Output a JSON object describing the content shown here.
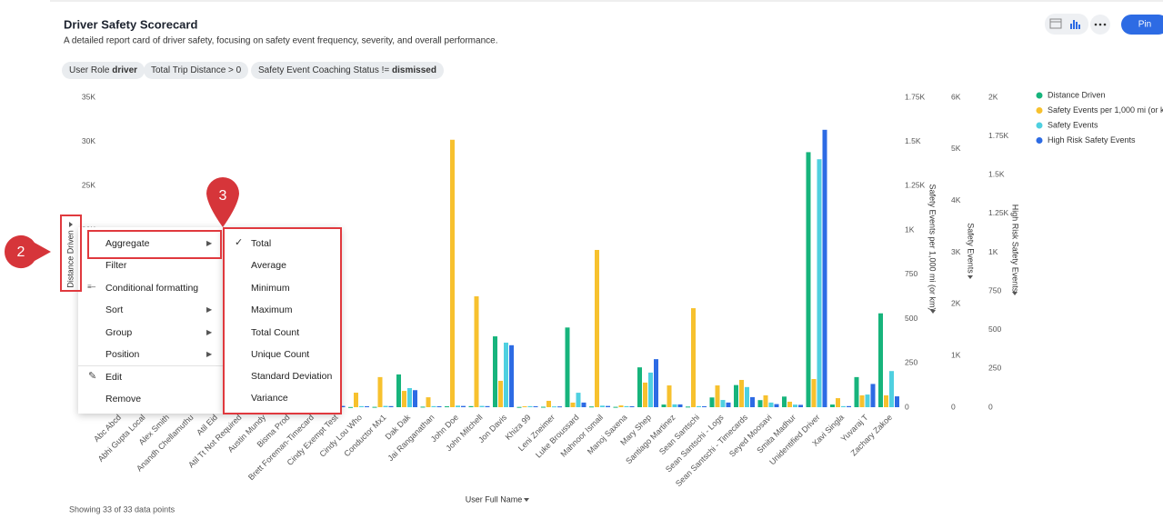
{
  "header": {
    "title": "Driver Safety Scorecard",
    "subtitle": "A detailed report card of driver safety, focusing on safety event frequency, severity, and overall performance."
  },
  "filters": [
    {
      "label": "User Role",
      "value": "driver"
    },
    {
      "label": "Total Trip Distance > 0"
    },
    {
      "label": "Safety Event Coaching Status !=",
      "value": "dismissed"
    }
  ],
  "toolbar": {
    "pin": "Pin"
  },
  "chart_data": {
    "type": "bar",
    "xlabel": "User Full Name",
    "ylabel": "Distance Driven",
    "y2label": "Safety Events per 1,000 mi (or km)",
    "y3label": "Safety Events",
    "y4label": "High Risk Safety Events",
    "categories": [
      "Abc Abcd",
      "Abhi Gupta Local",
      "Alex Smith",
      "Anandh Chellamuthu",
      "Atil Eid",
      "Atil Tt Not Required",
      "Austin Mundy",
      "Bisma Prod",
      "Brett Foreman-Timecard",
      "Cindy Exempt Test",
      "Cindy Lou Who",
      "Conductor Mx1",
      "Dak Dak",
      "Jai Ranganathan",
      "John Doe",
      "John Mitchell",
      "Jon Davis",
      "Khiza 99",
      "Leni Zneimer",
      "Luke Broussard",
      "Mahnoor Ismail",
      "Manoj Saxena",
      "Mary Shep",
      "Santiago Martinez",
      "Sean Santschi",
      "Sean Santschi - Logs",
      "Sean Santschi - Timecards",
      "Seyed Moosavi",
      "Smita Madhur",
      "Unidentified Driver",
      "Xavi Singla",
      "Yuvaraj T",
      "Zachary Zakoe"
    ],
    "series": [
      {
        "name": "Distance Driven",
        "color": "#17b47c",
        "axis": "y",
        "values": [
          50,
          120,
          30,
          80,
          20,
          40,
          60,
          30,
          90,
          150,
          20,
          40,
          3700,
          60,
          100,
          120,
          8000,
          30,
          50,
          9000,
          80,
          40,
          4500,
          300,
          70,
          1100,
          2500,
          800,
          1200,
          28800,
          300,
          3400,
          10600
        ]
      },
      {
        "name": "Safety Events per 1,000 mi (or km)",
        "color": "#f7c12e",
        "axis": "y2",
        "values": [
          10,
          20,
          5,
          15,
          8,
          12,
          10,
          6,
          18,
          8,
          82,
          170,
          92,
          56,
          1510,
          626,
          149,
          5,
          36,
          26,
          888,
          10,
          139,
          123,
          559,
          123,
          154,
          67,
          31,
          159,
          51,
          67,
          67
        ]
      },
      {
        "name": "Safety Events",
        "color": "#4fd0e0",
        "axis": "y3",
        "values": [
          20,
          40,
          10,
          30,
          15,
          20,
          25,
          10,
          30,
          25,
          20,
          25,
          370,
          20,
          30,
          25,
          1250,
          20,
          15,
          280,
          30,
          20,
          670,
          55,
          20,
          140,
          390,
          90,
          50,
          4800,
          20,
          245,
          700
        ]
      },
      {
        "name": "High Risk Safety Events",
        "color": "#2d6be4",
        "axis": "y4",
        "values": [
          5,
          10,
          3,
          8,
          4,
          6,
          7,
          3,
          9,
          8,
          6,
          7,
          110,
          6,
          8,
          7,
          400,
          6,
          5,
          30,
          8,
          6,
          310,
          18,
          6,
          30,
          65,
          20,
          15,
          1790,
          7,
          150,
          70
        ]
      }
    ],
    "ylim": [
      0,
      35000
    ],
    "yticks": [
      0,
      {
        "value": 5000,
        "label": "5K"
      },
      {
        "value": 10000,
        "label": "10K"
      },
      {
        "value": 15000,
        "label": "15K"
      },
      {
        "value": 20000,
        "label": "20K"
      },
      {
        "value": 25000,
        "label": "25K"
      },
      {
        "value": 30000,
        "label": "30K"
      },
      {
        "value": 35000,
        "label": "35K"
      }
    ],
    "y2lim": [
      0,
      1750
    ],
    "y2ticks": [
      0,
      250,
      500,
      750,
      {
        "value": 1000,
        "label": "1K"
      },
      {
        "value": 1250,
        "label": "1.25K"
      },
      {
        "value": 1500,
        "label": "1.5K"
      },
      {
        "value": 1750,
        "label": "1.75K"
      }
    ],
    "y3lim": [
      0,
      6000
    ],
    "y3ticks": [
      0,
      {
        "value": 1000,
        "label": "1K"
      },
      {
        "value": 2000,
        "label": "2K"
      },
      {
        "value": 3000,
        "label": "3K"
      },
      {
        "value": 4000,
        "label": "4K"
      },
      {
        "value": 5000,
        "label": "5K"
      },
      {
        "value": 6000,
        "label": "6K"
      }
    ],
    "y4lim": [
      0,
      2000
    ],
    "y4ticks": [
      0,
      250,
      500,
      750,
      {
        "value": 1000,
        "label": "1K"
      },
      {
        "value": 1250,
        "label": "1.25K"
      },
      {
        "value": 1500,
        "label": "1.5K"
      },
      {
        "value": 1750,
        "label": "1.75K"
      },
      {
        "value": 2000,
        "label": "2K"
      }
    ],
    "grid": false,
    "legend": "top-right"
  },
  "footer": "Showing 33 of 33 data points",
  "context_menu": [
    "Aggregate",
    "Filter",
    "Conditional formatting",
    "Sort",
    "Group",
    "Position",
    "Edit",
    "Remove"
  ],
  "aggregate_menu": [
    "Total",
    "Average",
    "Minimum",
    "Maximum",
    "Total Count",
    "Unique Count",
    "Standard Deviation",
    "Variance"
  ],
  "callouts": [
    "2",
    "3"
  ]
}
